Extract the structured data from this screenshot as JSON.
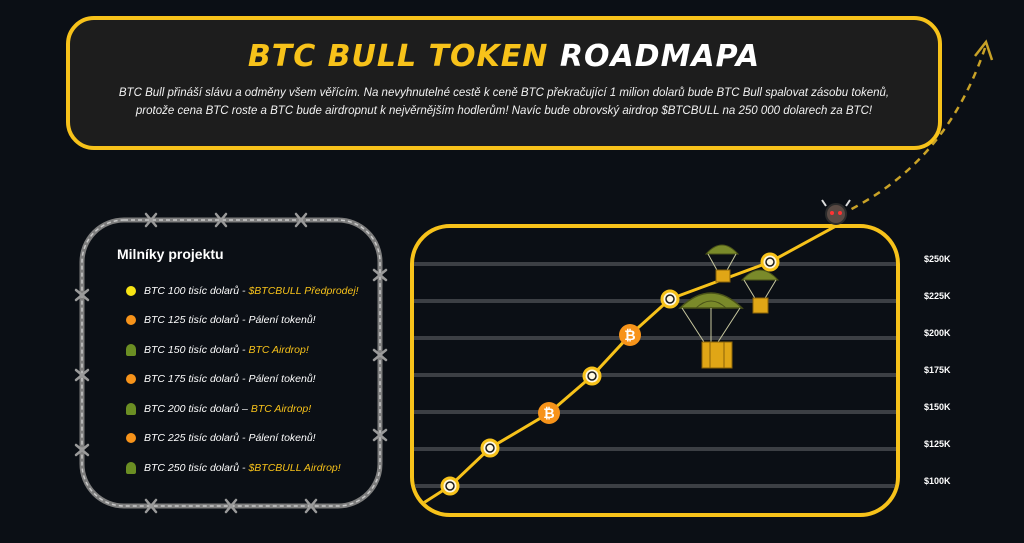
{
  "hero": {
    "title_part1": "BTC BULL TOKEN",
    "title_part2": "ROADMAPA",
    "intro": "BTC Bull přináší slávu a odměny všem věřícím. Na nevyhnutelné cestě k ceně BTC překračující 1 milion dolarů bude BTC Bull spalovat zásobu tokenů, protože cena BTC roste a BTC bude airdropnut k nejvěrnějším hodlerům! Navíc bude obrovský airdrop $BTCBULL na 250 000 dolarech za BTC!"
  },
  "milestones": {
    "heading": "Milníky projektu",
    "items": [
      {
        "text": "BTC 100 tisíc dolarů - ",
        "accent": "$BTCBULL Předprodej!",
        "icon": "yellow-dot",
        "color": "#f7e414"
      },
      {
        "text": "BTC 125 tisíc dolarů -  Pálení tokenů!",
        "accent": "",
        "icon": "orange-dot",
        "color": "#f7931a"
      },
      {
        "text": "BTC 150 tisíc dolarů - ",
        "accent": "BTC Airdrop!",
        "icon": "parachute-icon",
        "color": "#6b8e23"
      },
      {
        "text": "BTC 175 tisíc dolarů - Pálení tokenů!",
        "accent": "",
        "icon": "orange-dot",
        "color": "#f7931a"
      },
      {
        "text": "BTC 200 tisíc dolarů – ",
        "accent": "BTC Airdrop!",
        "icon": "parachute-icon",
        "color": "#6b8e23"
      },
      {
        "text": "BTC 225 tisíc dolarů - Pálení tokenů!",
        "accent": "",
        "icon": "orange-dot",
        "color": "#f7931a"
      },
      {
        "text": "BTC 250 tisíc dolarů - ",
        "accent": "$BTCBULL Airdrop!",
        "icon": "parachute-icon",
        "color": "#6b8e23"
      }
    ]
  },
  "chart_data": {
    "type": "line",
    "y_tick_labels": [
      "$250K",
      "$225K",
      "$200K",
      "$175K",
      "$150K",
      "$125K",
      "$100K"
    ],
    "y_tick_values": [
      250,
      225,
      200,
      175,
      150,
      125,
      100
    ],
    "ylim": [
      100,
      250
    ],
    "points": [
      {
        "y": 100,
        "marker": "circle"
      },
      {
        "y": 125,
        "marker": "circle"
      },
      {
        "y": 150,
        "marker": "bitcoin"
      },
      {
        "y": 175,
        "marker": "circle"
      },
      {
        "y": 200,
        "marker": "bitcoin"
      },
      {
        "y": 225,
        "marker": "circle"
      },
      {
        "y": 250,
        "marker": "circle"
      }
    ],
    "colors": {
      "line": "#f7c21a",
      "grid": "#3c3f44",
      "btc": "#f7931a",
      "marker_fill": "#fff8e0"
    },
    "bitcoin_glyph": "₿"
  }
}
